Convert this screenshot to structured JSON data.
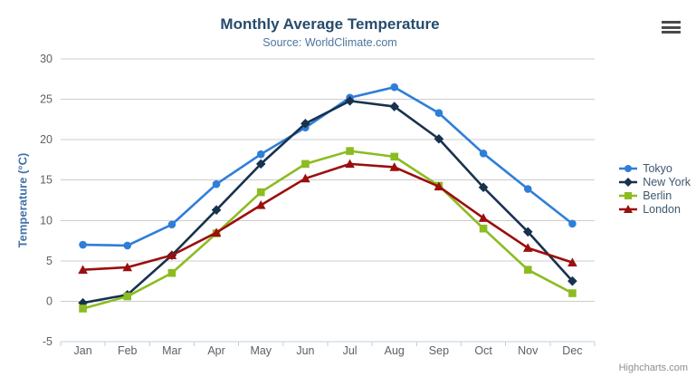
{
  "chart_data": {
    "type": "line",
    "title": "Monthly Average Temperature",
    "subtitle": "Source: WorldClimate.com",
    "categories": [
      "Jan",
      "Feb",
      "Mar",
      "Apr",
      "May",
      "Jun",
      "Jul",
      "Aug",
      "Sep",
      "Oct",
      "Nov",
      "Dec"
    ],
    "xlabel": "",
    "ylabel": "Temperature (°C)",
    "ylim": [
      -5,
      30
    ],
    "ytick_interval": 5,
    "ytick_labels": [
      "-5",
      "0",
      "5",
      "10",
      "15",
      "20",
      "25",
      "30"
    ],
    "grid": true,
    "legend_position": "right-middle",
    "series": [
      {
        "name": "Tokyo",
        "color": "#2f7ed8",
        "marker": "circle",
        "values": [
          7.0,
          6.9,
          9.5,
          14.5,
          18.2,
          21.5,
          25.2,
          26.5,
          23.3,
          18.3,
          13.9,
          9.6
        ]
      },
      {
        "name": "New York",
        "color": "#16324f",
        "marker": "diamond",
        "values": [
          -0.2,
          0.8,
          5.7,
          11.3,
          17.0,
          22.0,
          24.8,
          24.1,
          20.1,
          14.1,
          8.6,
          2.5
        ]
      },
      {
        "name": "Berlin",
        "color": "#8bbc21",
        "marker": "square",
        "values": [
          -0.9,
          0.6,
          3.5,
          8.4,
          13.5,
          17.0,
          18.6,
          17.9,
          14.3,
          9.0,
          3.9,
          1.0
        ]
      },
      {
        "name": "London",
        "color": "#9c0e0e",
        "marker": "triangle",
        "values": [
          3.9,
          4.2,
          5.7,
          8.5,
          11.9,
          15.2,
          17.0,
          16.6,
          14.2,
          10.3,
          6.6,
          4.8
        ]
      }
    ],
    "axis_colors": {
      "grid": "#cccccc",
      "axis_line": "#c0d0e0",
      "tick_label": "#606060"
    }
  },
  "credits": {
    "label": "Highcharts.com"
  }
}
